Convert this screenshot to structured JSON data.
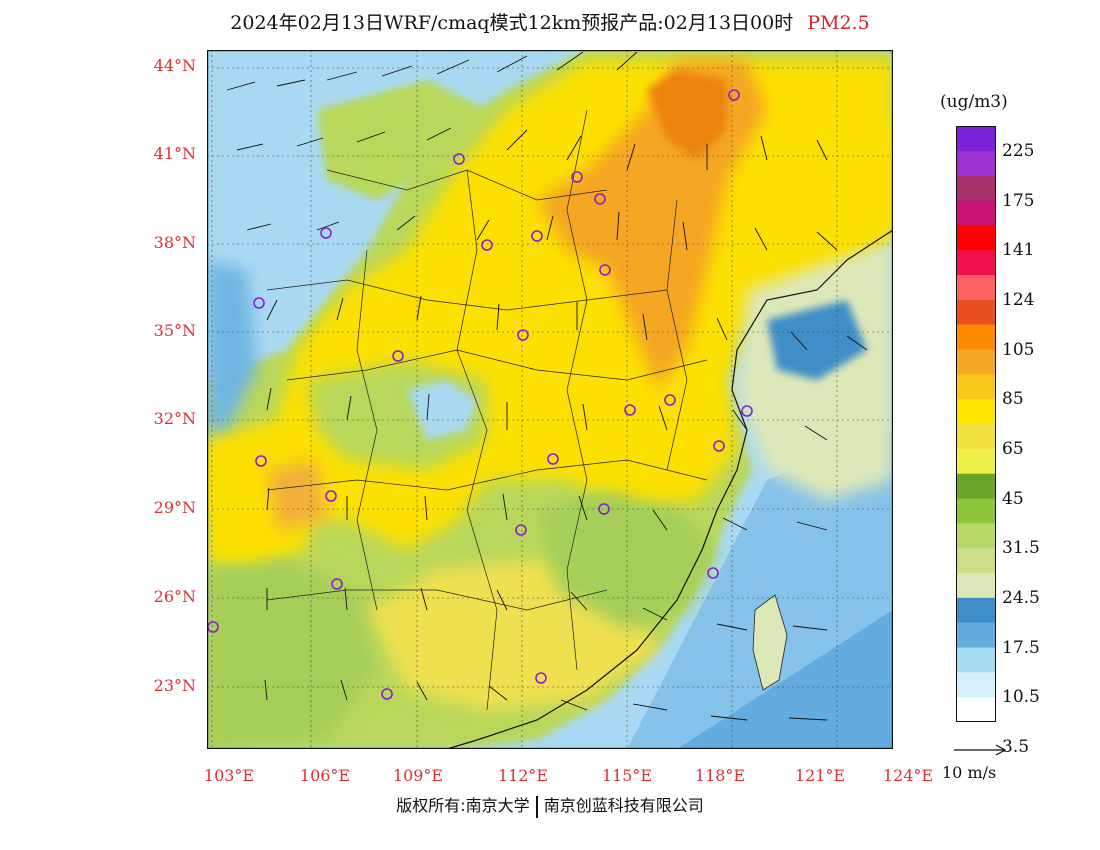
{
  "title": {
    "main": "2024年02月13日WRF/cmaq模式12km预报产品:02月13日00时",
    "product": "PM2.5"
  },
  "map": {
    "lat_labels": [
      "44°N",
      "41°N",
      "38°N",
      "35°N",
      "32°N",
      "29°N",
      "26°N",
      "23°N"
    ],
    "lon_labels": [
      "103°E",
      "106°E",
      "109°E",
      "112°E",
      "115°E",
      "118°E",
      "121°E",
      "124°E"
    ],
    "lat_range": [
      21,
      44.5
    ],
    "lon_range": [
      102.7,
      124
    ],
    "field": "PM2.5 concentration with 10 m wind vectors",
    "regions": [
      {
        "name": "north-china-plain",
        "level": "very-high",
        "color": "#f0a020"
      },
      {
        "name": "central-china",
        "level": "high",
        "color": "#fce000"
      },
      {
        "name": "south-china",
        "level": "moderate",
        "color": "#b9d75a"
      },
      {
        "name": "ocean",
        "level": "low",
        "color": "#a9d9f2"
      }
    ]
  },
  "colorbar": {
    "unit": "(ug/m3)",
    "labels": [
      "225",
      "175",
      "141",
      "124",
      "105",
      "85",
      "65",
      "45",
      "31.5",
      "24.5",
      "17.5",
      "10.5",
      "3.5"
    ],
    "colors": [
      "#7a22d8",
      "#9a30d0",
      "#a8306a",
      "#c81478",
      "#ff0000",
      "#f0104a",
      "#ff6060",
      "#e85020",
      "#ff8c00",
      "#f5a623",
      "#f8c81a",
      "#ffe600",
      "#f2e040",
      "#f0f04a",
      "#6aa52a",
      "#8cc63a",
      "#b8d868",
      "#cce08a",
      "#dde8b8",
      "#3f8ec8",
      "#62ace0",
      "#a8dcf4",
      "#d6f0fb",
      "#ffffff"
    ]
  },
  "vector": {
    "label": "10 m/s"
  },
  "footer": {
    "left": "版权所有:南京大学",
    "right": "南京创蓝科技有限公司"
  }
}
